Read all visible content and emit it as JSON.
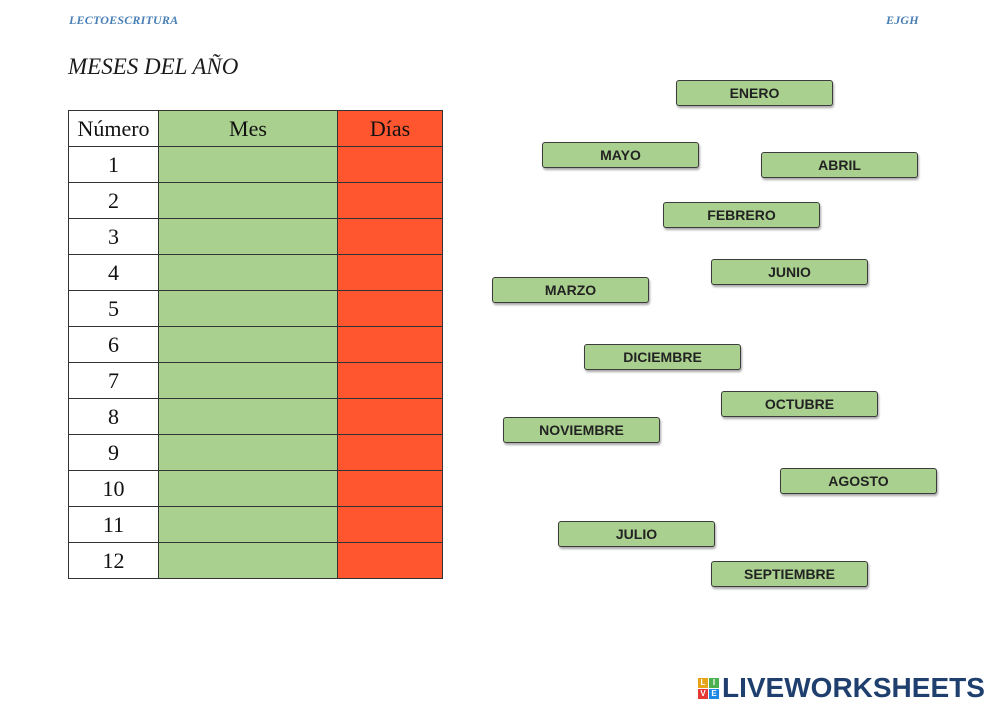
{
  "header": {
    "left": "LECTOESCRITURA",
    "right": "EJGH"
  },
  "title": "MESES DEL AÑO",
  "table": {
    "headers": [
      "Número",
      "Mes",
      "Días"
    ],
    "rows": [
      "1",
      "2",
      "3",
      "4",
      "5",
      "6",
      "7",
      "8",
      "9",
      "10",
      "11",
      "12"
    ]
  },
  "colors": {
    "mes_column": "#a9d08e",
    "dias_column": "#ff5630",
    "chip": "#a9d08e",
    "header_text": "#4a7fb5",
    "logo_text": "#1f3f6e"
  },
  "chips": [
    {
      "id": "enero",
      "label": "ENERO"
    },
    {
      "id": "mayo",
      "label": "MAYO"
    },
    {
      "id": "abril",
      "label": "ABRIL"
    },
    {
      "id": "febrero",
      "label": "FEBRERO"
    },
    {
      "id": "junio",
      "label": "JUNIO"
    },
    {
      "id": "marzo",
      "label": "MARZO"
    },
    {
      "id": "diciembre",
      "label": "DICIEMBRE"
    },
    {
      "id": "octubre",
      "label": "OCTUBRE"
    },
    {
      "id": "noviembre",
      "label": "NOVIEMBRE"
    },
    {
      "id": "agosto",
      "label": "AGOSTO"
    },
    {
      "id": "julio",
      "label": "JULIO"
    },
    {
      "id": "septiembre",
      "label": "SEPTIEMBRE"
    }
  ],
  "logo": {
    "text": "LIVEWORKSHEETS",
    "icon_letters": [
      "L",
      "I",
      "V",
      "E"
    ],
    "icon_colors": [
      "#e8a317",
      "#4caf50",
      "#e53935",
      "#1e88e5"
    ]
  }
}
